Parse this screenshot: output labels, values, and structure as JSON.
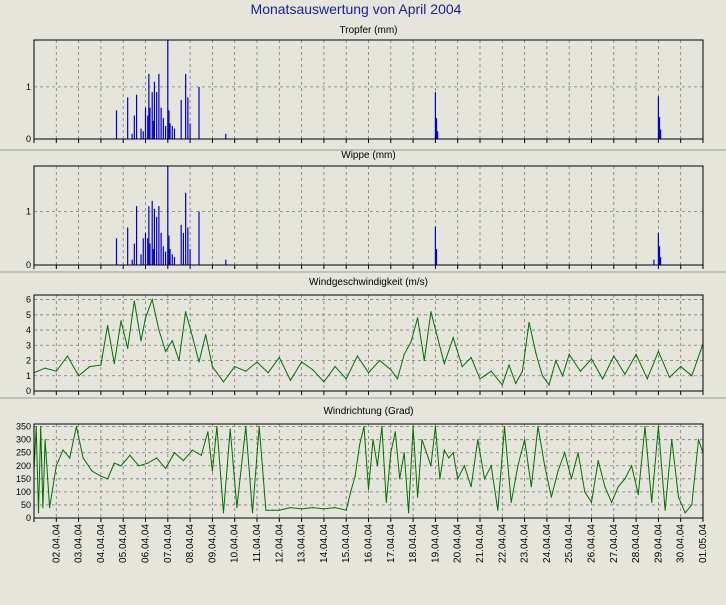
{
  "title": "Monatsauswertung von April 2004",
  "colors": {
    "background": "#e5e5dc",
    "plot_background": "#e5e5dc",
    "title": "#1a1aa0",
    "rain": "#0000cc",
    "wind": "#007000",
    "grid": "#7a7a7a",
    "divider": "#9a9a9a"
  },
  "x_tick_labels": [
    "02.04.04",
    "03.04.04",
    "04.04.04",
    "05.04.04",
    "06.04.04",
    "07.04.04",
    "08.04.04",
    "09.04.04",
    "10.04.04",
    "11.04.04",
    "12.04.04",
    "13.04.04",
    "14.04.04",
    "15.04.04",
    "16.04.04",
    "17.04.04",
    "18.04.04",
    "19.04.04",
    "20.04.04",
    "21.04.04",
    "22.04.04",
    "23.04.04",
    "24.04.04",
    "25.04.04",
    "26.04.04",
    "27.04.04",
    "28.04.04",
    "29.04.04",
    "30.04.04",
    "01.05.04"
  ],
  "chart_data": [
    {
      "type": "bar",
      "title": "Tropfer (mm)",
      "x_unit": "day of April 2004",
      "xlim": [
        1,
        31
      ],
      "ylim": [
        0,
        1.9
      ],
      "yticks": [
        0,
        1
      ],
      "grid": true,
      "series": [
        {
          "color": "#0000cc",
          "x": [
            4.7,
            5.2,
            5.4,
            5.5,
            5.6,
            5.8,
            5.9,
            6.0,
            6.1,
            6.15,
            6.2,
            6.3,
            6.35,
            6.4,
            6.5,
            6.6,
            6.7,
            6.8,
            6.9,
            7.0,
            7.05,
            7.1,
            7.2,
            7.3,
            7.6,
            7.8,
            7.9,
            8.0,
            8.4,
            9.6,
            19.0,
            19.05,
            19.1,
            29.0,
            29.05,
            29.1
          ],
          "values": [
            0.55,
            0.8,
            0.1,
            0.45,
            0.85,
            0.2,
            0.15,
            0.6,
            0.45,
            1.25,
            0.6,
            0.9,
            0.35,
            1.1,
            0.9,
            1.25,
            0.6,
            0.4,
            0.25,
            1.9,
            0.55,
            0.3,
            0.25,
            0.2,
            0.75,
            1.25,
            0.8,
            0.3,
            1.0,
            0.1,
            0.9,
            0.4,
            0.15,
            0.82,
            0.42,
            0.18
          ]
        }
      ]
    },
    {
      "type": "bar",
      "title": "Wippe (mm)",
      "x_unit": "day of April 2004",
      "xlim": [
        1,
        31
      ],
      "ylim": [
        0,
        1.85
      ],
      "yticks": [
        0,
        1
      ],
      "grid": true,
      "series": [
        {
          "color": "#0000cc",
          "x": [
            4.7,
            5.2,
            5.4,
            5.5,
            5.6,
            5.8,
            5.9,
            6.0,
            6.1,
            6.15,
            6.2,
            6.3,
            6.35,
            6.4,
            6.5,
            6.6,
            6.7,
            6.8,
            6.9,
            7.0,
            7.05,
            7.1,
            7.2,
            7.3,
            7.6,
            7.7,
            7.8,
            7.9,
            8.0,
            8.4,
            9.6,
            19.0,
            19.05,
            28.8,
            29.0,
            29.05,
            29.1
          ],
          "values": [
            0.5,
            0.7,
            0.1,
            0.4,
            1.1,
            0.2,
            0.5,
            0.6,
            0.5,
            1.1,
            0.4,
            1.2,
            0.3,
            1.05,
            0.9,
            1.1,
            0.6,
            0.35,
            0.25,
            1.85,
            0.55,
            0.3,
            0.2,
            0.15,
            0.75,
            0.6,
            1.35,
            0.7,
            0.3,
            1.0,
            0.1,
            0.72,
            0.3,
            0.1,
            0.6,
            0.35,
            0.15
          ]
        }
      ]
    },
    {
      "type": "line",
      "title": "Windgeschwindigkeit (m/s)",
      "x_unit": "day of April 2004",
      "xlim": [
        1,
        31
      ],
      "ylim": [
        0,
        6.3
      ],
      "yticks": [
        0,
        1,
        2,
        3,
        4,
        5,
        6
      ],
      "grid": true,
      "series": [
        {
          "color": "#007000",
          "x": [
            1.0,
            1.5,
            2.0,
            2.5,
            3.0,
            3.5,
            4.0,
            4.3,
            4.6,
            4.9,
            5.2,
            5.5,
            5.8,
            6.0,
            6.3,
            6.6,
            6.9,
            7.2,
            7.5,
            7.8,
            8.1,
            8.4,
            8.7,
            9.0,
            9.5,
            10.0,
            10.5,
            11.0,
            11.5,
            12.0,
            12.5,
            13.0,
            13.5,
            14.0,
            14.5,
            15.0,
            15.5,
            16.0,
            16.5,
            17.0,
            17.3,
            17.6,
            17.9,
            18.2,
            18.5,
            18.8,
            19.1,
            19.4,
            19.8,
            20.2,
            20.6,
            21.0,
            21.5,
            22.0,
            22.3,
            22.6,
            22.9,
            23.2,
            23.5,
            23.8,
            24.1,
            24.4,
            24.7,
            25.0,
            25.5,
            26.0,
            26.5,
            27.0,
            27.5,
            28.0,
            28.5,
            29.0,
            29.5,
            30.0,
            30.5,
            31.0
          ],
          "values": [
            1.2,
            1.5,
            1.3,
            2.3,
            1.0,
            1.6,
            1.7,
            4.3,
            1.8,
            4.6,
            2.8,
            5.9,
            3.3,
            4.8,
            6.0,
            4.0,
            2.6,
            3.3,
            2.0,
            5.2,
            3.6,
            1.9,
            3.7,
            1.6,
            0.6,
            1.6,
            1.3,
            1.9,
            1.2,
            2.2,
            0.7,
            1.9,
            1.4,
            0.6,
            1.6,
            0.8,
            2.3,
            1.2,
            2.0,
            1.4,
            0.8,
            2.4,
            3.2,
            4.8,
            2.0,
            5.2,
            3.5,
            1.8,
            3.5,
            1.6,
            2.2,
            0.8,
            1.3,
            0.4,
            1.7,
            0.5,
            1.3,
            4.5,
            2.5,
            1.0,
            0.4,
            2.0,
            1.0,
            2.4,
            1.3,
            2.1,
            0.8,
            2.3,
            1.1,
            2.4,
            0.8,
            2.6,
            0.9,
            1.6,
            1.0,
            3.1
          ]
        }
      ]
    },
    {
      "type": "line",
      "title": "Windrichtung (Grad)",
      "x_unit": "day of April 2004",
      "xlim": [
        1,
        31
      ],
      "ylim": [
        0,
        360
      ],
      "yticks": [
        0,
        50,
        100,
        150,
        200,
        250,
        300,
        350
      ],
      "grid": true,
      "series": [
        {
          "color": "#007000",
          "x": [
            1.0,
            1.1,
            1.2,
            1.3,
            1.4,
            1.5,
            1.7,
            2.0,
            2.3,
            2.6,
            2.9,
            3.2,
            3.6,
            4.0,
            4.3,
            4.6,
            4.9,
            5.3,
            5.7,
            6.1,
            6.5,
            6.9,
            7.3,
            7.7,
            8.1,
            8.5,
            8.8,
            9.0,
            9.2,
            9.5,
            9.8,
            10.1,
            10.5,
            10.8,
            11.1,
            11.4,
            11.7,
            12.0,
            12.5,
            13.0,
            13.5,
            14.0,
            14.5,
            15.0,
            15.2,
            15.4,
            15.6,
            15.8,
            16.0,
            16.2,
            16.4,
            16.6,
            16.8,
            17.0,
            17.2,
            17.4,
            17.6,
            17.8,
            18.0,
            18.2,
            18.4,
            18.6,
            18.8,
            19.0,
            19.2,
            19.4,
            19.6,
            19.8,
            20.0,
            20.3,
            20.6,
            20.9,
            21.2,
            21.5,
            21.8,
            22.1,
            22.4,
            22.7,
            23.0,
            23.3,
            23.6,
            23.9,
            24.2,
            24.5,
            24.8,
            25.1,
            25.4,
            25.7,
            26.0,
            26.3,
            26.6,
            26.9,
            27.2,
            27.5,
            27.8,
            28.1,
            28.4,
            28.7,
            29.0,
            29.3,
            29.6,
            29.9,
            30.2,
            30.5,
            30.8,
            31.0
          ],
          "values": [
            180,
            350,
            20,
            350,
            40,
            300,
            40,
            200,
            260,
            230,
            350,
            230,
            180,
            160,
            150,
            210,
            200,
            240,
            200,
            210,
            230,
            190,
            250,
            220,
            260,
            240,
            330,
            180,
            350,
            20,
            340,
            40,
            350,
            20,
            350,
            30,
            30,
            30,
            40,
            35,
            40,
            35,
            40,
            30,
            100,
            160,
            280,
            350,
            110,
            300,
            200,
            350,
            60,
            250,
            330,
            150,
            250,
            20,
            350,
            80,
            300,
            250,
            200,
            350,
            150,
            260,
            230,
            250,
            150,
            200,
            120,
            300,
            150,
            200,
            30,
            350,
            60,
            200,
            300,
            120,
            350,
            200,
            80,
            180,
            250,
            150,
            250,
            100,
            60,
            220,
            120,
            60,
            120,
            150,
            200,
            90,
            350,
            60,
            350,
            30,
            300,
            80,
            20,
            50,
            300,
            250
          ]
        }
      ]
    }
  ]
}
